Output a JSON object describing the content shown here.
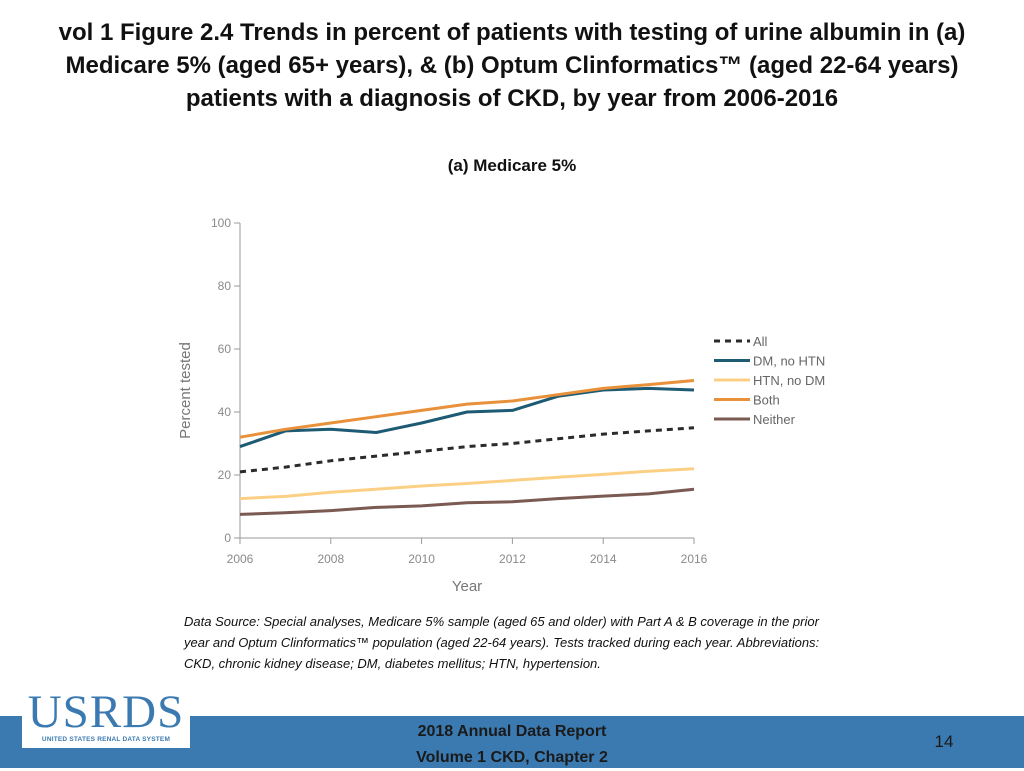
{
  "slide": {
    "title_lines": [
      "vol 1 Figure 2.4 Trends in percent of patients with testing of urine albumin in (a)",
      "Medicare 5% (aged 65+ years), & (b) Optum Clinformatics™ (aged 22-64 years)",
      "patients with a diagnosis of CKD, by year from 2006-2016"
    ],
    "source_note": "Data Source: Special analyses, Medicare 5% sample (aged 65 and older) with Part A & B coverage in the prior year and Optum Clinformatics™ population (aged 22-64 years). Tests tracked during each year. Abbreviations: CKD, chronic kidney disease; DM, diabetes mellitus; HTN, hypertension.",
    "footer_lines": [
      "2018 Annual Data Report",
      "Volume 1 CKD, Chapter 2"
    ],
    "page_number": "14",
    "logo_text": "USRDS",
    "logo_subtext": "UNITED STATES RENAL DATA SYSTEM",
    "footer_color": "#3b7ab0"
  },
  "chart_data": {
    "type": "line",
    "title": "(a) Medicare 5%",
    "xlabel": "Year",
    "ylabel": "Percent tested",
    "xlim": [
      2006,
      2016
    ],
    "ylim": [
      0,
      100
    ],
    "x_ticks": [
      2006,
      2008,
      2010,
      2012,
      2014,
      2016
    ],
    "y_ticks": [
      0,
      20,
      40,
      60,
      80,
      100
    ],
    "grid": false,
    "legend_position": "right",
    "x": [
      2006,
      2007,
      2008,
      2009,
      2010,
      2011,
      2012,
      2013,
      2014,
      2015,
      2016
    ],
    "series": [
      {
        "name": "All",
        "color": "#2b2b2b",
        "dashed": true,
        "values": [
          21,
          22.5,
          24.5,
          26,
          27.5,
          29,
          30,
          31.5,
          33,
          34,
          35
        ]
      },
      {
        "name": "DM, no HTN",
        "color": "#1d5a73",
        "dashed": false,
        "values": [
          29,
          34,
          34.5,
          33.5,
          36.5,
          40,
          40.5,
          45,
          47,
          47.5,
          47
        ]
      },
      {
        "name": "HTN, no DM",
        "color": "#fcd084",
        "dashed": false,
        "values": [
          12.5,
          13.2,
          14.5,
          15.5,
          16.5,
          17.3,
          18.3,
          19.3,
          20.2,
          21.2,
          22
        ]
      },
      {
        "name": "Both",
        "color": "#e8913a",
        "dashed": false,
        "values": [
          32,
          34.5,
          36.5,
          38.5,
          40.5,
          42.5,
          43.5,
          45.5,
          47.5,
          48.7,
          50
        ]
      },
      {
        "name": "Neither",
        "color": "#7a5a52",
        "dashed": false,
        "values": [
          7.5,
          8,
          8.7,
          9.7,
          10.2,
          11.2,
          11.5,
          12.5,
          13.3,
          14,
          15.5
        ]
      }
    ]
  }
}
